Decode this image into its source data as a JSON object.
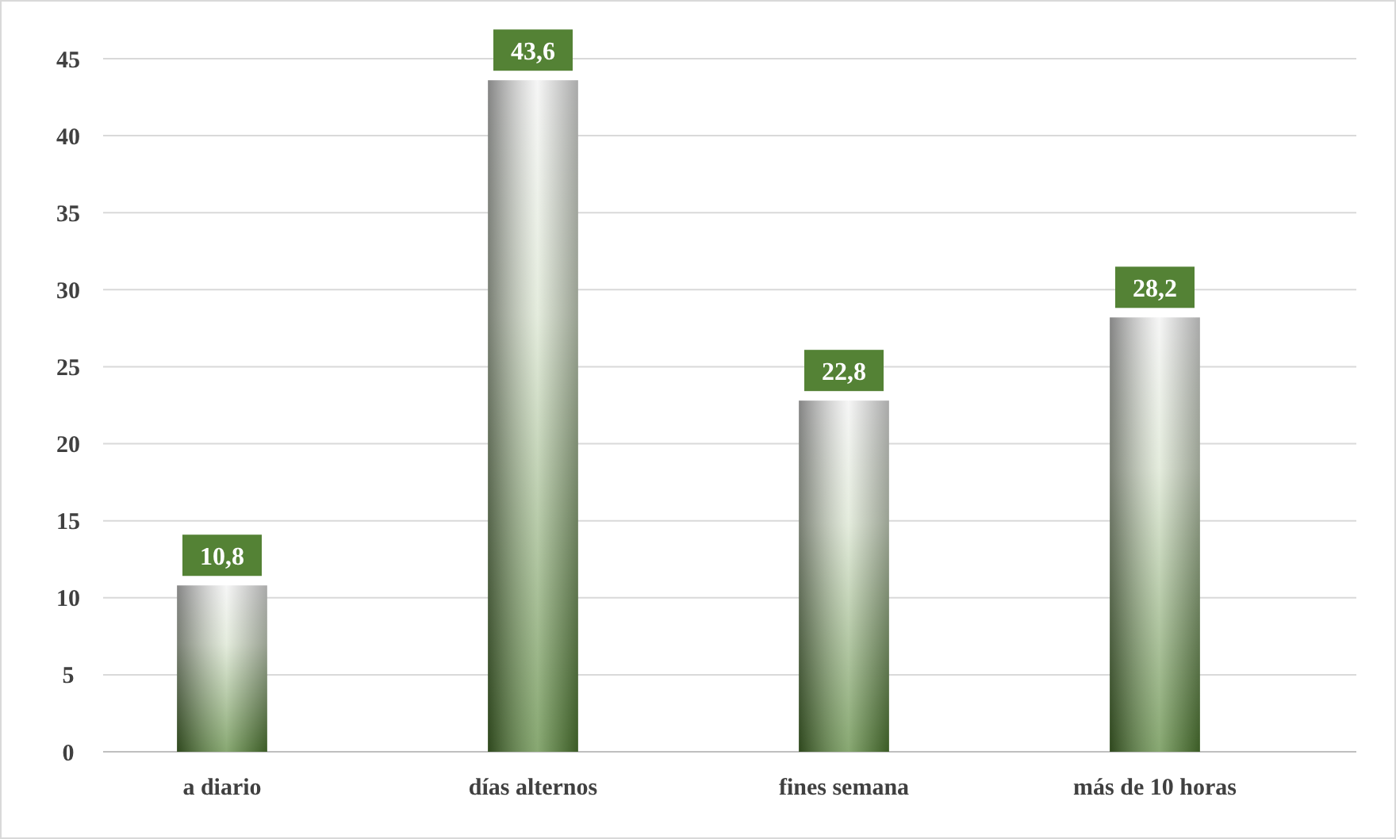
{
  "chart_data": {
    "type": "bar",
    "categories": [
      "a diario",
      "días alternos",
      "fines semana",
      "más de 10 horas"
    ],
    "values": [
      10.8,
      43.6,
      22.8,
      28.2
    ],
    "color": "#548235",
    "value_labels": [
      "10,8",
      "43,6",
      "22,8",
      "28,2"
    ],
    "ylim": [
      0,
      45
    ],
    "yticks": [
      0,
      5,
      10,
      15,
      20,
      25,
      30,
      35,
      40,
      45
    ],
    "grid": "y"
  }
}
